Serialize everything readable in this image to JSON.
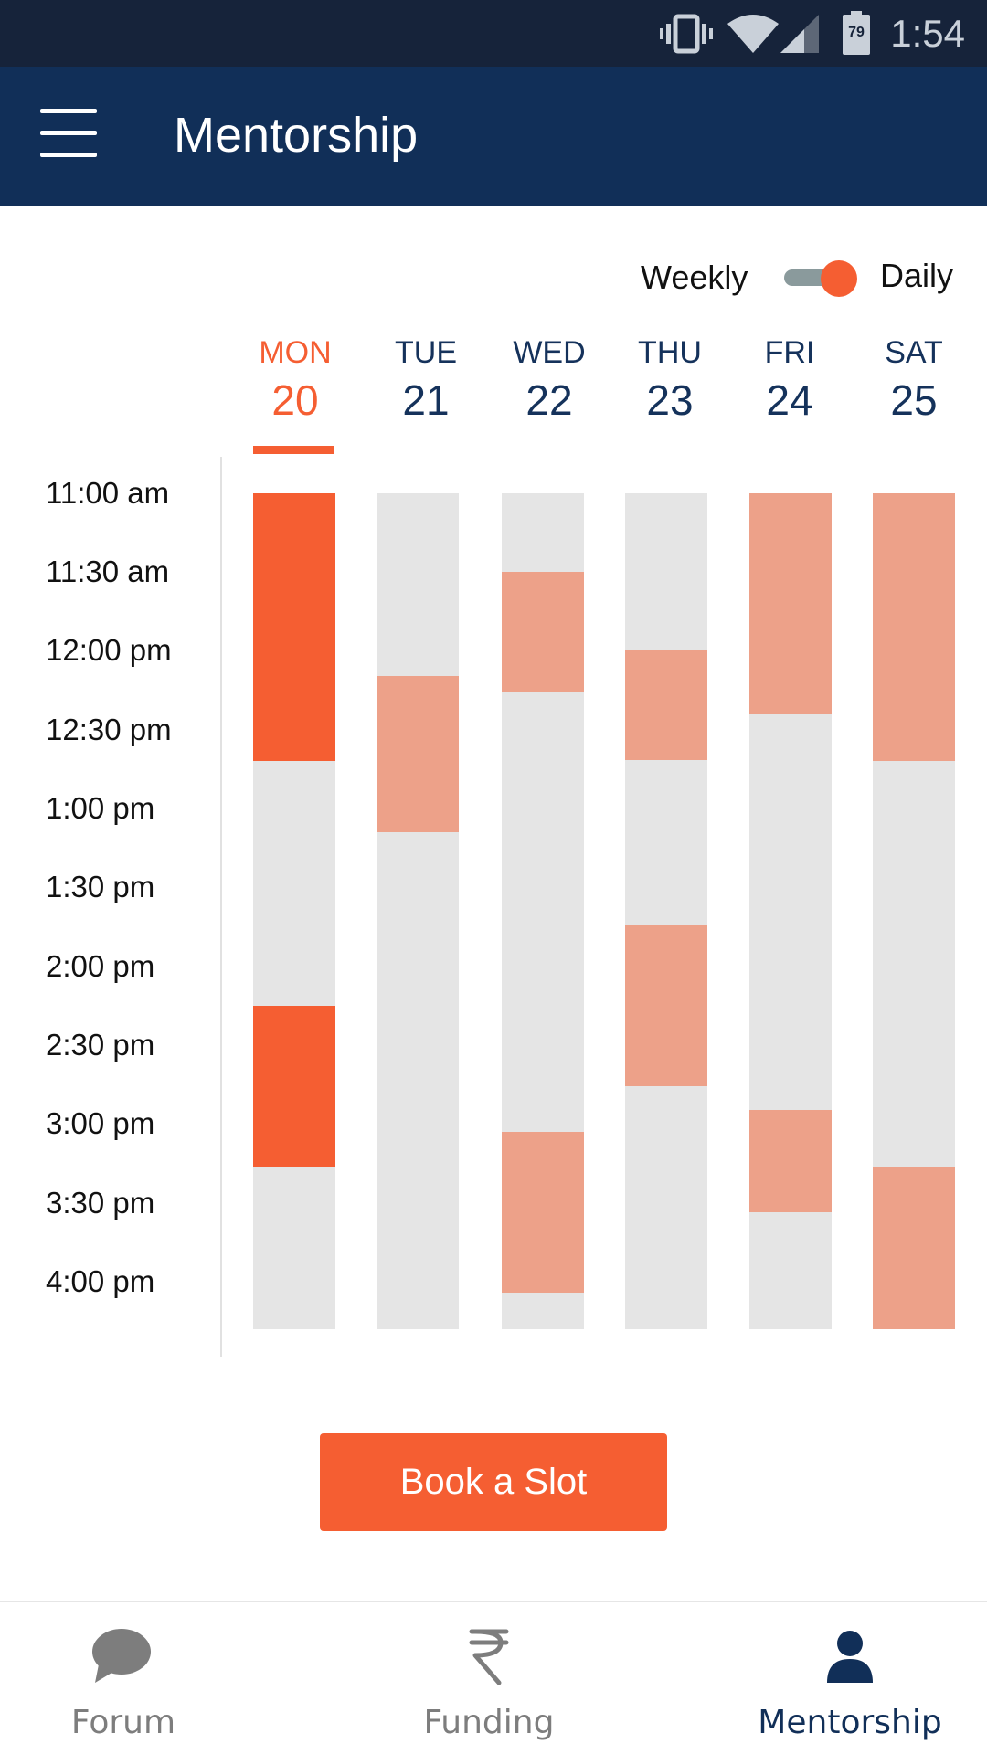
{
  "status_bar": {
    "time": "1:54",
    "battery": "79"
  },
  "app_bar": {
    "title": "Mentorship"
  },
  "view_toggle": {
    "left_label": "Weekly",
    "right_label": "Daily",
    "selected": "Daily"
  },
  "days": [
    {
      "name": "MON",
      "date": "20",
      "active": true
    },
    {
      "name": "TUE",
      "date": "21",
      "active": false
    },
    {
      "name": "WED",
      "date": "22",
      "active": false
    },
    {
      "name": "THU",
      "date": "23",
      "active": false
    },
    {
      "name": "FRI",
      "date": "24",
      "active": false
    },
    {
      "name": "SAT",
      "date": "25",
      "active": false
    }
  ],
  "time_labels": [
    "11:00 am",
    "11:30 am",
    "12:00 pm",
    "12:30 pm",
    "1:00 pm",
    "1:30 pm",
    "2:00 pm",
    "2:30 pm",
    "3:00 pm",
    "3:30 pm",
    "4:00 pm"
  ],
  "schedule": {
    "start_hour": 11.0,
    "end_hour": 16.3,
    "columns": [
      {
        "day": "MON",
        "slots": [
          {
            "start": 11.0,
            "end": 12.7,
            "state": "selected"
          },
          {
            "start": 14.25,
            "end": 15.27,
            "state": "selected"
          }
        ]
      },
      {
        "day": "TUE",
        "slots": [
          {
            "start": 12.16,
            "end": 13.15,
            "state": "available"
          }
        ]
      },
      {
        "day": "WED",
        "slots": [
          {
            "start": 11.5,
            "end": 12.26,
            "state": "available"
          },
          {
            "start": 15.05,
            "end": 16.07,
            "state": "available"
          }
        ]
      },
      {
        "day": "THU",
        "slots": [
          {
            "start": 11.99,
            "end": 12.69,
            "state": "available"
          },
          {
            "start": 13.74,
            "end": 14.76,
            "state": "available"
          }
        ]
      },
      {
        "day": "FRI",
        "slots": [
          {
            "start": 11.0,
            "end": 12.4,
            "state": "available"
          },
          {
            "start": 14.91,
            "end": 15.56,
            "state": "available"
          }
        ]
      },
      {
        "day": "SAT",
        "slots": [
          {
            "start": 11.0,
            "end": 12.7,
            "state": "available"
          },
          {
            "start": 15.27,
            "end": 16.3,
            "state": "available"
          }
        ]
      }
    ]
  },
  "colors": {
    "selected": "#f55e32",
    "available": "#eda189",
    "empty": "#e5e5e5",
    "nav_active": "#112f58",
    "nav_inactive": "#7d7d7d"
  },
  "book_button": {
    "label": "Book a Slot"
  },
  "bottom_nav": [
    {
      "label": "Forum",
      "icon": "chat-bubble-icon",
      "active": false
    },
    {
      "label": "Funding",
      "icon": "rupee-icon",
      "active": false
    },
    {
      "label": "Mentorship",
      "icon": "person-icon",
      "active": true
    }
  ]
}
